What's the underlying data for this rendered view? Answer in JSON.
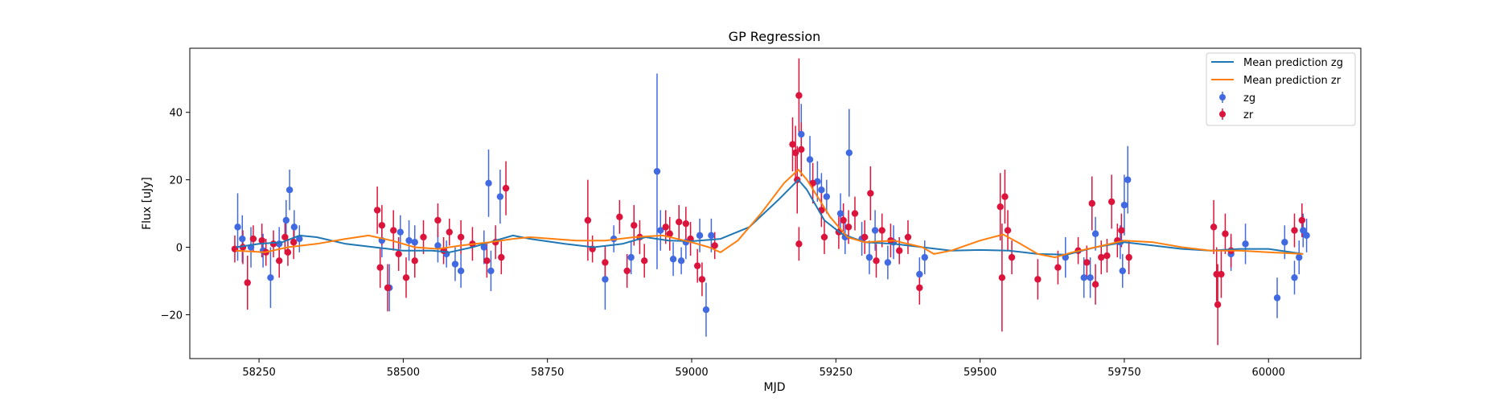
{
  "chart_data": {
    "type": "scatter",
    "title": "GP Regression",
    "xlabel": "MJD",
    "ylabel": "Flux [uJy]",
    "xlim": [
      58130,
      60160
    ],
    "ylim": [
      -33,
      59
    ],
    "xticks": [
      58250,
      58500,
      58750,
      59000,
      59250,
      59500,
      59750,
      60000
    ],
    "yticks": [
      -20,
      0,
      20,
      40
    ],
    "grid": false,
    "legend_position": "top-right",
    "legend": [
      "Mean prediction zg",
      "Mean prediction zr",
      "zg",
      "zr"
    ],
    "colors": {
      "line_zg": "#1f77b4",
      "line_zr": "#ff7f0e",
      "pts_zg": "#4169e1",
      "pts_zr": "#dc143c"
    },
    "series": [
      {
        "name": "Mean prediction zg",
        "kind": "line",
        "color": "#1f77b4",
        "points": [
          [
            58210,
            0
          ],
          [
            58250,
            1
          ],
          [
            58290,
            1.5
          ],
          [
            58320,
            3.5
          ],
          [
            58350,
            3
          ],
          [
            58400,
            1
          ],
          [
            58450,
            0
          ],
          [
            58500,
            -1
          ],
          [
            58550,
            -1
          ],
          [
            58580,
            -1.5
          ],
          [
            58620,
            0
          ],
          [
            58660,
            2
          ],
          [
            58690,
            3.5
          ],
          [
            58720,
            2.5
          ],
          [
            58780,
            1
          ],
          [
            58830,
            0
          ],
          [
            58880,
            1
          ],
          [
            58920,
            3
          ],
          [
            58960,
            2
          ],
          [
            59000,
            1.8
          ],
          [
            59050,
            2.5
          ],
          [
            59100,
            6
          ],
          [
            59150,
            14
          ],
          [
            59185,
            20
          ],
          [
            59200,
            17
          ],
          [
            59230,
            8
          ],
          [
            59260,
            4
          ],
          [
            59300,
            1.5
          ],
          [
            59350,
            1
          ],
          [
            59400,
            0
          ],
          [
            59450,
            -1
          ],
          [
            59500,
            -0.8
          ],
          [
            59550,
            -1
          ],
          [
            59600,
            -2
          ],
          [
            59650,
            -2.2
          ],
          [
            59700,
            0
          ],
          [
            59750,
            1.5
          ],
          [
            59800,
            0.5
          ],
          [
            59850,
            -0.5
          ],
          [
            59900,
            -1
          ],
          [
            59950,
            -0.5
          ],
          [
            60000,
            -0.5
          ],
          [
            60040,
            -1.5
          ],
          [
            60060,
            -2
          ]
        ]
      },
      {
        "name": "Mean prediction zr",
        "kind": "line",
        "color": "#ff7f0e",
        "points": [
          [
            58210,
            -1
          ],
          [
            58260,
            -1.5
          ],
          [
            58300,
            0
          ],
          [
            58350,
            1
          ],
          [
            58400,
            2.5
          ],
          [
            58440,
            3.5
          ],
          [
            58480,
            2
          ],
          [
            58520,
            0
          ],
          [
            58560,
            -0.5
          ],
          [
            58600,
            0.5
          ],
          [
            58650,
            1.5
          ],
          [
            58690,
            2.5
          ],
          [
            58720,
            3
          ],
          [
            58800,
            2
          ],
          [
            58850,
            2
          ],
          [
            58900,
            3
          ],
          [
            58950,
            3.5
          ],
          [
            59000,
            1.5
          ],
          [
            59030,
            0
          ],
          [
            59050,
            -1.5
          ],
          [
            59080,
            2
          ],
          [
            59120,
            10
          ],
          [
            59160,
            19
          ],
          [
            59185,
            23
          ],
          [
            59200,
            20
          ],
          [
            59240,
            9
          ],
          [
            59270,
            3
          ],
          [
            59300,
            1.5
          ],
          [
            59350,
            2
          ],
          [
            59400,
            0
          ],
          [
            59420,
            -2
          ],
          [
            59450,
            -1
          ],
          [
            59500,
            2
          ],
          [
            59540,
            3.8
          ],
          [
            59570,
            1
          ],
          [
            59600,
            -2
          ],
          [
            59630,
            -3
          ],
          [
            59660,
            -1.5
          ],
          [
            59700,
            0
          ],
          [
            59750,
            2
          ],
          [
            59800,
            1.5
          ],
          [
            59850,
            0
          ],
          [
            59900,
            -1
          ],
          [
            59950,
            -1
          ],
          [
            60000,
            -1.5
          ],
          [
            60040,
            -1.8
          ],
          [
            60060,
            -2
          ]
        ]
      },
      {
        "name": "zg",
        "kind": "errorbar",
        "color": "#4169e1",
        "points": [
          [
            58213,
            6,
            10
          ],
          [
            58221,
            2.5,
            7
          ],
          [
            58236,
            0,
            6
          ],
          [
            58257,
            -1,
            5
          ],
          [
            58270,
            -9,
            9
          ],
          [
            58285,
            1,
            5
          ],
          [
            58297,
            8,
            6
          ],
          [
            58303,
            17,
            6
          ],
          [
            58311,
            6,
            5
          ],
          [
            58320,
            2.5,
            4
          ],
          [
            58463,
            2,
            5
          ],
          [
            58476,
            -12,
            7
          ],
          [
            58495,
            4.5,
            5
          ],
          [
            58510,
            2,
            6
          ],
          [
            58520,
            1.5,
            5
          ],
          [
            58560,
            0.5,
            5
          ],
          [
            58575,
            -2,
            4
          ],
          [
            58590,
            -5,
            5
          ],
          [
            58600,
            -7,
            5
          ],
          [
            58640,
            0,
            5
          ],
          [
            58648,
            19,
            10
          ],
          [
            58652,
            -7,
            6
          ],
          [
            58668,
            15,
            8
          ],
          [
            58850,
            -9.5,
            9
          ],
          [
            58865,
            2.5,
            4
          ],
          [
            58895,
            -3,
            5
          ],
          [
            58940,
            22.5,
            29
          ],
          [
            58946,
            5,
            6
          ],
          [
            58968,
            -3.5,
            5
          ],
          [
            58982,
            -4,
            4
          ],
          [
            58990,
            1.5,
            5
          ],
          [
            59014,
            3.5,
            5
          ],
          [
            59025,
            -18.5,
            8
          ],
          [
            59034,
            3.5,
            5
          ],
          [
            59190,
            33.5,
            9
          ],
          [
            59205,
            26,
            7
          ],
          [
            59218,
            19.5,
            6
          ],
          [
            59225,
            17,
            5
          ],
          [
            59234,
            15,
            5
          ],
          [
            59258,
            10,
            6
          ],
          [
            59266,
            3,
            5
          ],
          [
            59273,
            28,
            13
          ],
          [
            59295,
            2.5,
            5
          ],
          [
            59308,
            -3,
            5
          ],
          [
            59318,
            5,
            6
          ],
          [
            59340,
            -4.5,
            5
          ],
          [
            59350,
            1.5,
            5
          ],
          [
            59395,
            -8,
            5
          ],
          [
            59404,
            -3,
            5
          ],
          [
            59648,
            -3,
            6
          ],
          [
            59680,
            -9,
            6
          ],
          [
            59691,
            -9,
            6
          ],
          [
            59700,
            4,
            5
          ],
          [
            59743,
            1.5,
            5
          ],
          [
            59747,
            -7,
            5
          ],
          [
            59750,
            12.5,
            9
          ],
          [
            59756,
            20,
            10
          ],
          [
            59935,
            -2,
            5
          ],
          [
            59960,
            1,
            6
          ],
          [
            60015,
            -15,
            6
          ],
          [
            60028,
            1.5,
            5
          ],
          [
            60045,
            -9,
            5
          ],
          [
            60053,
            -3,
            5
          ],
          [
            60060,
            5,
            5
          ],
          [
            60066,
            3.5,
            5
          ]
        ]
      },
      {
        "name": "zr",
        "kind": "errorbar",
        "color": "#dc143c",
        "points": [
          [
            58208,
            -0.5,
            4
          ],
          [
            58222,
            0,
            5
          ],
          [
            58230,
            -10.5,
            8
          ],
          [
            58240,
            2.5,
            4
          ],
          [
            58255,
            2,
            5
          ],
          [
            58262,
            -1.5,
            4
          ],
          [
            58275,
            1,
            4
          ],
          [
            58285,
            -4,
            5
          ],
          [
            58295,
            3,
            5
          ],
          [
            58300,
            -1.5,
            4
          ],
          [
            58310,
            1.5,
            5
          ],
          [
            58455,
            11,
            7
          ],
          [
            58460,
            -6,
            6
          ],
          [
            58463,
            6.5,
            6
          ],
          [
            58473,
            -12,
            7
          ],
          [
            58483,
            5,
            6
          ],
          [
            58492,
            -2,
            5
          ],
          [
            58505,
            -9,
            6
          ],
          [
            58520,
            -4,
            5
          ],
          [
            58535,
            3,
            5
          ],
          [
            58560,
            8,
            5
          ],
          [
            58570,
            -1,
            4
          ],
          [
            58580,
            4.5,
            4
          ],
          [
            58600,
            3,
            5
          ],
          [
            58620,
            1,
            5
          ],
          [
            58645,
            -4,
            5
          ],
          [
            58660,
            1.5,
            5
          ],
          [
            58670,
            -3,
            5
          ],
          [
            58678,
            17.5,
            8
          ],
          [
            58820,
            8,
            12
          ],
          [
            58828,
            -0.5,
            4
          ],
          [
            58850,
            -4.5,
            5
          ],
          [
            58875,
            9,
            5
          ],
          [
            58888,
            -7,
            5
          ],
          [
            58900,
            6.5,
            6
          ],
          [
            58910,
            3,
            5
          ],
          [
            58918,
            -4,
            5
          ],
          [
            58955,
            6,
            5
          ],
          [
            58962,
            4,
            5
          ],
          [
            58978,
            7.5,
            5
          ],
          [
            58990,
            7,
            5
          ],
          [
            58998,
            2.5,
            5
          ],
          [
            59010,
            -5.5,
            5
          ],
          [
            59018,
            -9.5,
            5
          ],
          [
            59040,
            0.5,
            4
          ],
          [
            59175,
            30.5,
            8
          ],
          [
            59180,
            28,
            8
          ],
          [
            59183,
            20,
            10
          ],
          [
            59186,
            45,
            11
          ],
          [
            59186,
            1,
            5
          ],
          [
            59190,
            29,
            8
          ],
          [
            59210,
            19,
            6
          ],
          [
            59225,
            11,
            5
          ],
          [
            59230,
            3,
            5
          ],
          [
            59255,
            4.5,
            5
          ],
          [
            59263,
            8,
            5
          ],
          [
            59272,
            6,
            5
          ],
          [
            59283,
            10,
            5
          ],
          [
            59300,
            3,
            5
          ],
          [
            59310,
            16,
            8
          ],
          [
            59320,
            -4,
            5
          ],
          [
            59330,
            5,
            5
          ],
          [
            59345,
            2,
            5
          ],
          [
            59360,
            -1,
            4
          ],
          [
            59375,
            3,
            5
          ],
          [
            59395,
            -12,
            5
          ],
          [
            59535,
            12,
            10
          ],
          [
            59538,
            -9,
            16
          ],
          [
            59543,
            15,
            8
          ],
          [
            59548,
            5,
            6
          ],
          [
            59555,
            -3,
            5
          ],
          [
            59600,
            -9.5,
            6
          ],
          [
            59635,
            -6,
            5
          ],
          [
            59670,
            -1,
            4
          ],
          [
            59685,
            -4.5,
            5
          ],
          [
            59694,
            13,
            8
          ],
          [
            59700,
            -11,
            6
          ],
          [
            59710,
            -3,
            5
          ],
          [
            59720,
            -2.5,
            5
          ],
          [
            59728,
            13.5,
            8
          ],
          [
            59738,
            2,
            5
          ],
          [
            59745,
            5,
            5
          ],
          [
            59758,
            -3,
            5
          ],
          [
            59905,
            6,
            8
          ],
          [
            59910,
            -8,
            8
          ],
          [
            59912,
            -17,
            12
          ],
          [
            59918,
            -8,
            7
          ],
          [
            59925,
            4,
            6
          ],
          [
            59935,
            -1,
            5
          ],
          [
            60045,
            5,
            5
          ],
          [
            60058,
            8,
            5
          ]
        ]
      }
    ]
  }
}
